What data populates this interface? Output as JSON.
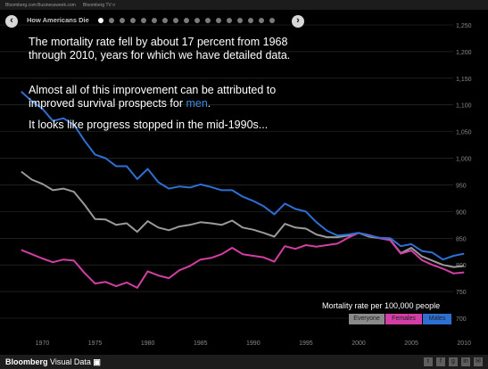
{
  "topbar": {
    "links": [
      "Bloomberg.com",
      "Businessweek.com",
      "Bloomberg TV ¤"
    ]
  },
  "story": {
    "title": "How Americans Die",
    "dot_count": 17,
    "active_dot": 0,
    "prev_icon": "chevron-left-icon",
    "next_icon": "chevron-right-icon",
    "prev_label": "‹",
    "next_label": "›"
  },
  "narrative": {
    "para1": "The mortality rate fell by about 17 percent from 1968 through 2010, years for which we have detailed data.",
    "para2_before": "Almost all of this improvement can be attributed to improved survival prospects for ",
    "para2_highlight": "men",
    "para2_after": ".",
    "para3": "It looks like progress stopped in the mid-1990s..."
  },
  "legend": {
    "caption": "Mortality rate per 100,000 people",
    "everyone": "Everyone",
    "females": "Females",
    "males": "Males"
  },
  "footer": {
    "brand": "Bloomberg",
    "sub": " Visual Data",
    "brand_icon": "chart-icon",
    "share_icons": [
      "twitter-icon",
      "facebook-icon",
      "google-plus-icon",
      "linkedin-icon",
      "email-icon"
    ],
    "share_glyphs": [
      "t",
      "f",
      "g",
      "in",
      "✉"
    ]
  },
  "colors": {
    "everyone": "#9a9a9a",
    "females": "#d23ea3",
    "males": "#2e6fd3",
    "accent": "#3a8ce6"
  },
  "chart_data": {
    "type": "line",
    "x": [
      1968,
      1969,
      1970,
      1971,
      1972,
      1973,
      1974,
      1975,
      1976,
      1977,
      1978,
      1979,
      1980,
      1981,
      1982,
      1983,
      1984,
      1985,
      1986,
      1987,
      1988,
      1989,
      1990,
      1991,
      1992,
      1993,
      1994,
      1995,
      1996,
      1997,
      1998,
      1999,
      2000,
      2001,
      2002,
      2003,
      2004,
      2005,
      2006,
      2007,
      2008,
      2009,
      2010
    ],
    "x_ticks": [
      "1970",
      "1975",
      "1980",
      "1985",
      "1990",
      "1995",
      "2000",
      "2005",
      "2010"
    ],
    "y_ticks": [
      "700",
      "750",
      "800",
      "850",
      "900",
      "950",
      "1,000",
      "1,050",
      "1,100",
      "1,150",
      "1,200",
      "1,250"
    ],
    "ylim": [
      700,
      1250
    ],
    "xlim": [
      1967,
      2011
    ],
    "series": [
      {
        "name": "Males",
        "values": [
          1125,
          1107,
          1093,
          1070,
          1075,
          1063,
          1033,
          1007,
          1000,
          985,
          985,
          961,
          980,
          955,
          943,
          947,
          945,
          951,
          946,
          940,
          940,
          928,
          920,
          910,
          895,
          915,
          905,
          900,
          880,
          864,
          855,
          857,
          860,
          855,
          851,
          850,
          835,
          839,
          826,
          823,
          810,
          817,
          821
        ]
      },
      {
        "name": "Everyone",
        "values": [
          975,
          960,
          952,
          940,
          943,
          937,
          913,
          886,
          885,
          875,
          878,
          862,
          882,
          870,
          865,
          872,
          875,
          880,
          878,
          875,
          883,
          870,
          866,
          860,
          853,
          877,
          870,
          868,
          857,
          852,
          852,
          855,
          860,
          853,
          850,
          847,
          822,
          832,
          816,
          808,
          800,
          796,
          798
        ]
      },
      {
        "name": "Females",
        "values": [
          828,
          820,
          812,
          805,
          810,
          808,
          785,
          765,
          768,
          760,
          767,
          757,
          788,
          780,
          775,
          790,
          798,
          810,
          813,
          820,
          832,
          820,
          817,
          814,
          806,
          835,
          830,
          837,
          834,
          837,
          840,
          851,
          860,
          856,
          850,
          846,
          821,
          827,
          809,
          800,
          793,
          784,
          786
        ]
      }
    ]
  }
}
